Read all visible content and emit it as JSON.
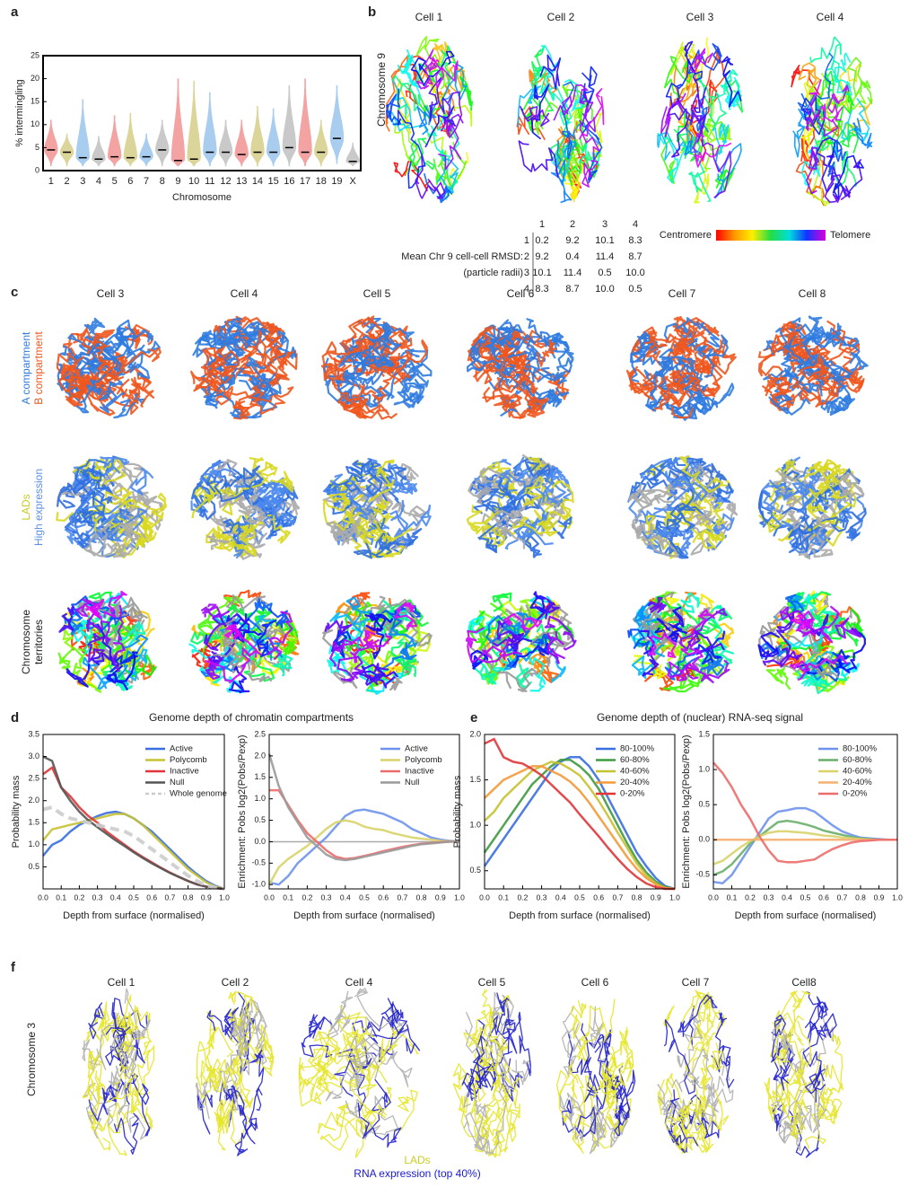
{
  "panel_labels": [
    "a",
    "b",
    "c",
    "d",
    "e",
    "f"
  ],
  "b": {
    "cells": [
      "Cell 1",
      "Cell 2",
      "Cell 3",
      "Cell 4"
    ],
    "ylabel": "Chromosome 9",
    "table": {
      "header": [
        "1",
        "2",
        "3",
        "4"
      ],
      "row_labels": [
        "1",
        "2",
        "3",
        "4"
      ],
      "caption": [
        "Mean Chr 9 cell-cell RMSD:",
        "(particle radii)"
      ],
      "rows": [
        [
          "0.2",
          "9.2",
          "10.1",
          "8.3"
        ],
        [
          "9.2",
          "0.4",
          "11.4",
          "8.7"
        ],
        [
          "10.1",
          "11.4",
          "0.5",
          "10.0"
        ],
        [
          "8.3",
          "8.7",
          "10.0",
          "0.5"
        ]
      ]
    },
    "colorbar": {
      "left": "Centromere",
      "right": "Telomere"
    }
  },
  "c": {
    "cells": [
      "Cell 3",
      "Cell 4",
      "Cell 5",
      "Cell 6",
      "Cell 7",
      "Cell 8"
    ],
    "rows": [
      [
        "A compartment",
        "B compartment"
      ],
      [
        "LADs",
        "High expression"
      ],
      [
        "Chromosome",
        "territories"
      ]
    ]
  },
  "d": {
    "title": "Genome depth of chromatin compartments"
  },
  "e": {
    "title": "Genome depth of (nuclear) RNA-seq signal"
  },
  "f": {
    "cells": [
      "Cell 1",
      "Cell 2",
      "Cell 4",
      "Cell 5",
      "Cell 6",
      "Cell 7",
      "Cell8"
    ],
    "ylabel": "Chromosome 3",
    "legend": [
      "LADs",
      "RNA expression (top 40%)"
    ]
  },
  "chart_data": [
    {
      "type": "violin",
      "ylabel": "% intermingling",
      "xlabel": "Chromosome",
      "categories": [
        "1",
        "2",
        "3",
        "4",
        "5",
        "6",
        "7",
        "8",
        "9",
        "10",
        "11",
        "12",
        "13",
        "14",
        "15",
        "16",
        "17",
        "18",
        "19",
        "X"
      ],
      "values": [
        4.5,
        4,
        2.8,
        2.5,
        3,
        2.8,
        3,
        4.5,
        2.2,
        2.5,
        4,
        4,
        3.5,
        4,
        4,
        5,
        4,
        4,
        7,
        2
      ],
      "min": [
        1,
        1,
        1,
        1,
        1,
        1,
        1,
        1,
        1,
        1,
        1,
        1,
        1,
        1,
        1,
        1,
        1,
        1,
        1.5,
        1
      ],
      "max": [
        11,
        8,
        15.5,
        7.5,
        12,
        12.5,
        8,
        11,
        20,
        19.5,
        17,
        11,
        11,
        14,
        13.5,
        18.5,
        20,
        11,
        18.5,
        6
      ],
      "colors": [
        "#f4a3a3",
        "#dcd59a",
        "#a9cdef",
        "#c9c9c9",
        "#f4a3a3",
        "#dcd59a",
        "#a9cdef",
        "#c9c9c9",
        "#f4a3a3",
        "#dcd59a",
        "#a9cdef",
        "#c9c9c9",
        "#f4a3a3",
        "#dcd59a",
        "#a9cdef",
        "#c9c9c9",
        "#f4a3a3",
        "#dcd59a",
        "#a9cdef",
        "#c9c9c9"
      ],
      "ylim": [
        0,
        25
      ],
      "yticks": [
        0,
        5,
        10,
        15,
        20,
        25
      ]
    },
    {
      "type": "line",
      "ylabel": "Probability mass",
      "xlabel": "Depth from surface (normalised)",
      "legend": "upper right",
      "x": [
        0,
        0.05,
        0.1,
        0.15,
        0.2,
        0.25,
        0.3,
        0.35,
        0.4,
        0.45,
        0.5,
        0.55,
        0.6,
        0.65,
        0.7,
        0.75,
        0.8,
        0.85,
        0.9,
        0.95,
        1
      ],
      "xlim": [
        0,
        1
      ],
      "xticks": [
        {
          "value": 0,
          "label": "0.0"
        },
        0.1,
        0.2,
        0.3,
        0.4,
        0.5,
        0.6,
        0.7,
        0.8,
        0.9,
        {
          "value": 1,
          "label": "1.0"
        }
      ],
      "ylim": [
        0,
        3.5
      ],
      "yticks": [
        0.5,
        {
          "value": 1,
          "label": "1.0"
        },
        1.5,
        {
          "value": 2,
          "label": "2.0"
        },
        2.5,
        {
          "value": 3,
          "label": "3.0"
        },
        3.5
      ],
      "series": [
        {
          "name": "Active",
          "color": "#3a6fe0",
          "values": [
            0.75,
            1.0,
            1.1,
            1.3,
            1.45,
            1.55,
            1.65,
            1.72,
            1.75,
            1.7,
            1.6,
            1.45,
            1.3,
            1.1,
            0.9,
            0.7,
            0.5,
            0.33,
            0.18,
            0.07,
            0
          ]
        },
        {
          "name": "Polycomb",
          "color": "#c6c232",
          "values": [
            1.1,
            1.35,
            1.4,
            1.45,
            1.5,
            1.55,
            1.6,
            1.65,
            1.7,
            1.7,
            1.6,
            1.45,
            1.25,
            1.05,
            0.85,
            0.65,
            0.45,
            0.3,
            0.15,
            0.05,
            0
          ]
        },
        {
          "name": "Inactive",
          "color": "#e0363a",
          "values": [
            2.6,
            2.75,
            2.3,
            2.1,
            1.85,
            1.65,
            1.5,
            1.3,
            1.15,
            1.0,
            0.85,
            0.72,
            0.6,
            0.48,
            0.37,
            0.27,
            0.18,
            0.1,
            0.05,
            0.02,
            0
          ]
        },
        {
          "name": "Null",
          "color": "#555555",
          "values": [
            3.0,
            2.9,
            2.3,
            2.0,
            1.75,
            1.55,
            1.4,
            1.25,
            1.1,
            0.97,
            0.83,
            0.7,
            0.58,
            0.47,
            0.36,
            0.27,
            0.18,
            0.1,
            0.05,
            0.02,
            0
          ]
        },
        {
          "name": "Whole genome",
          "color": "#cccccc",
          "style": "dashed",
          "values": [
            1.8,
            1.85,
            1.7,
            1.6,
            1.55,
            1.5,
            1.45,
            1.4,
            1.35,
            1.3,
            1.2,
            1.05,
            0.9,
            0.75,
            0.6,
            0.45,
            0.3,
            0.18,
            0.08,
            0.03,
            0
          ]
        }
      ]
    },
    {
      "type": "line",
      "ylabel": "Enrichment: Pobs log2(Pobs/Pexp)",
      "xlabel": "Depth from surface (normalised)",
      "legend": "upper right",
      "hline": 0,
      "x": [
        0,
        0.05,
        0.1,
        0.15,
        0.2,
        0.25,
        0.3,
        0.35,
        0.4,
        0.45,
        0.5,
        0.55,
        0.6,
        0.65,
        0.7,
        0.75,
        0.8,
        0.85,
        0.9,
        0.95,
        1
      ],
      "xlim": [
        0,
        1
      ],
      "xticks": [
        {
          "value": 0,
          "label": "0.0"
        },
        0.1,
        0.2,
        0.3,
        0.4,
        0.5,
        0.6,
        0.7,
        0.8,
        0.9,
        {
          "value": 1,
          "label": "1.0"
        }
      ],
      "ylim": [
        -1.1,
        2.5
      ],
      "yticks": [
        {
          "value": -1,
          "label": "-1.0"
        },
        -0.5,
        {
          "value": 0,
          "label": "0.0"
        },
        0.5,
        {
          "value": 1,
          "label": "1.0"
        },
        1.5,
        {
          "value": 2,
          "label": "2.0"
        },
        2.5
      ],
      "series": [
        {
          "name": "Active",
          "color": "#6f93ec",
          "values": [
            -0.95,
            -1.0,
            -0.8,
            -0.5,
            -0.3,
            -0.1,
            0.1,
            0.35,
            0.6,
            0.72,
            0.75,
            0.7,
            0.65,
            0.55,
            0.45,
            0.3,
            0.2,
            0.1,
            0.05,
            0.02,
            0
          ]
        },
        {
          "name": "Polycomb",
          "color": "#d8d36a",
          "values": [
            -1.0,
            -0.6,
            -0.4,
            -0.25,
            -0.1,
            0.1,
            0.3,
            0.45,
            0.5,
            0.45,
            0.35,
            0.3,
            0.27,
            0.2,
            0.15,
            0.1,
            0.07,
            0.05,
            0.02,
            0.01,
            0
          ]
        },
        {
          "name": "Inactive",
          "color": "#ec6b6b",
          "values": [
            1.2,
            1.2,
            0.85,
            0.5,
            0.2,
            0,
            -0.2,
            -0.35,
            -0.4,
            -0.38,
            -0.33,
            -0.28,
            -0.22,
            -0.17,
            -0.12,
            -0.08,
            -0.05,
            -0.03,
            -0.01,
            0,
            0
          ]
        },
        {
          "name": "Null",
          "color": "#9a9a9a",
          "values": [
            2.05,
            1.3,
            0.8,
            0.45,
            0.1,
            -0.1,
            -0.3,
            -0.4,
            -0.43,
            -0.4,
            -0.35,
            -0.3,
            -0.25,
            -0.2,
            -0.15,
            -0.1,
            -0.06,
            -0.04,
            -0.02,
            0,
            0
          ]
        }
      ]
    },
    {
      "type": "line",
      "ylabel": "Probability mass",
      "xlabel": "Depth from surface (normalised)",
      "legend": "upper right",
      "x": [
        0,
        0.05,
        0.1,
        0.15,
        0.2,
        0.25,
        0.3,
        0.35,
        0.4,
        0.45,
        0.5,
        0.55,
        0.6,
        0.65,
        0.7,
        0.75,
        0.8,
        0.85,
        0.9,
        0.95,
        1
      ],
      "xlim": [
        0,
        1
      ],
      "xticks": [
        {
          "value": 0,
          "label": "0.0"
        },
        0.1,
        0.2,
        0.3,
        0.4,
        0.5,
        0.6,
        0.7,
        0.8,
        0.9,
        {
          "value": 1,
          "label": "1.0"
        }
      ],
      "ylim": [
        0.3,
        2.0
      ],
      "yticks": [
        0.5,
        {
          "value": 1,
          "label": "1.0"
        },
        1.5,
        {
          "value": 2,
          "label": "2.0"
        }
      ],
      "series": [
        {
          "name": "80-100%",
          "color": "#3a6fe0",
          "values": [
            0.55,
            0.7,
            0.85,
            1.0,
            1.15,
            1.3,
            1.45,
            1.6,
            1.7,
            1.75,
            1.75,
            1.65,
            1.5,
            1.3,
            1.1,
            0.9,
            0.7,
            0.55,
            0.42,
            0.33,
            0.3
          ]
        },
        {
          "name": "60-80%",
          "color": "#3f9a3f",
          "values": [
            0.7,
            0.85,
            1.0,
            1.15,
            1.3,
            1.45,
            1.55,
            1.65,
            1.72,
            1.72,
            1.65,
            1.55,
            1.4,
            1.2,
            1.0,
            0.8,
            0.62,
            0.48,
            0.38,
            0.32,
            0.3
          ]
        },
        {
          "name": "40-60%",
          "color": "#c6c232",
          "values": [
            1.05,
            1.15,
            1.3,
            1.4,
            1.5,
            1.6,
            1.65,
            1.7,
            1.68,
            1.62,
            1.55,
            1.42,
            1.27,
            1.1,
            0.92,
            0.75,
            0.58,
            0.45,
            0.36,
            0.31,
            0.3
          ]
        },
        {
          "name": "20-40%",
          "color": "#f29a3a",
          "values": [
            1.3,
            1.4,
            1.5,
            1.55,
            1.6,
            1.65,
            1.65,
            1.6,
            1.55,
            1.48,
            1.38,
            1.25,
            1.1,
            0.95,
            0.8,
            0.65,
            0.52,
            0.42,
            0.35,
            0.31,
            0.3
          ]
        },
        {
          "name": "0-20%",
          "color": "#e0363a",
          "values": [
            1.9,
            1.95,
            1.75,
            1.7,
            1.68,
            1.62,
            1.55,
            1.45,
            1.35,
            1.25,
            1.12,
            1.0,
            0.88,
            0.75,
            0.63,
            0.52,
            0.43,
            0.36,
            0.32,
            0.3,
            0.3
          ]
        }
      ]
    },
    {
      "type": "line",
      "ylabel": "Enrichment: Pobs log2(Pobs/Pexp)",
      "xlabel": "Depth from surface (normalised)",
      "legend": "upper right",
      "x": [
        0,
        0.05,
        0.1,
        0.15,
        0.2,
        0.25,
        0.3,
        0.35,
        0.4,
        0.45,
        0.5,
        0.55,
        0.6,
        0.65,
        0.7,
        0.75,
        0.8,
        0.85,
        0.9,
        0.95,
        1
      ],
      "xlim": [
        0,
        1
      ],
      "xticks": [
        {
          "value": 0,
          "label": "0.0"
        },
        0.1,
        0.2,
        0.3,
        0.4,
        0.5,
        0.6,
        0.7,
        0.8,
        0.9,
        {
          "value": 1,
          "label": "1.0"
        }
      ],
      "ylim": [
        -0.7,
        1.5
      ],
      "yticks": [
        -0.5,
        {
          "value": 0,
          "label": "0.0"
        },
        0.5,
        {
          "value": 1,
          "label": "1.0"
        },
        1.5
      ],
      "series": [
        {
          "name": "80-100%",
          "color": "#6f93ec",
          "values": [
            -0.6,
            -0.62,
            -0.5,
            -0.3,
            -0.1,
            0.1,
            0.3,
            0.4,
            0.42,
            0.45,
            0.45,
            0.4,
            0.3,
            0.2,
            0.12,
            0.07,
            0.03,
            0.02,
            0.01,
            0,
            0
          ]
        },
        {
          "name": "60-80%",
          "color": "#6aae6a",
          "values": [
            -0.5,
            -0.45,
            -0.35,
            -0.2,
            -0.05,
            0.05,
            0.15,
            0.25,
            0.27,
            0.25,
            0.22,
            0.18,
            0.13,
            0.1,
            0.07,
            0.04,
            0.02,
            0.01,
            0,
            0,
            0
          ]
        },
        {
          "name": "40-60%",
          "color": "#d8d36a",
          "values": [
            -0.35,
            -0.3,
            -0.2,
            -0.1,
            -0.02,
            0.05,
            0.1,
            0.12,
            0.12,
            0.11,
            0.1,
            0.08,
            0.06,
            0.05,
            0.03,
            0.02,
            0.01,
            0,
            0,
            0,
            0
          ]
        },
        {
          "name": "20-40%",
          "color": "#f5b070",
          "values": [
            0,
            0,
            0,
            0,
            0,
            0,
            0,
            0,
            0,
            0,
            0,
            0,
            0,
            0,
            0,
            0,
            0,
            0,
            0,
            0,
            0
          ]
        },
        {
          "name": "0-20%",
          "color": "#ec6b6b",
          "values": [
            1.1,
            0.95,
            0.75,
            0.5,
            0.3,
            0.05,
            -0.15,
            -0.3,
            -0.32,
            -0.32,
            -0.3,
            -0.28,
            -0.2,
            -0.13,
            -0.08,
            -0.04,
            -0.02,
            -0.01,
            0,
            0,
            0
          ]
        }
      ]
    }
  ]
}
